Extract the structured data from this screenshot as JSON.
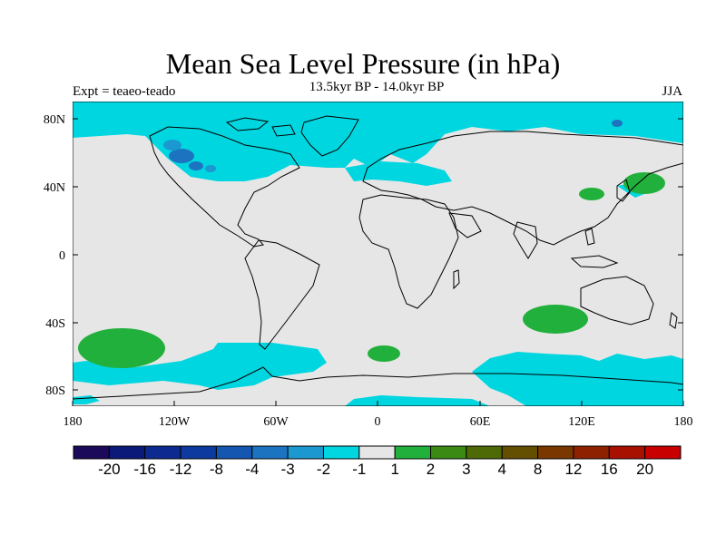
{
  "map": {
    "title": "Mean Sea Level Pressure (in hPa)",
    "left_label": "Expt = teaeo-teado",
    "center_label": "13.5kyr BP - 14.0kyr BP",
    "right_label": "JJA",
    "lat_labels": [
      "80N",
      "40N",
      "0",
      "40S",
      "80S"
    ],
    "lon_labels": [
      "180",
      "120W",
      "60W",
      "0",
      "60E",
      "120E",
      "180"
    ]
  },
  "colorbar": {
    "colors": [
      "#1b0a5a",
      "#0b1a78",
      "#0d2a90",
      "#0d3a9e",
      "#1556b0",
      "#1c74c0",
      "#1c98d0",
      "#00d6e0",
      "#e6e6e6",
      "#22b03c",
      "#3a8a14",
      "#4e6a06",
      "#644e00",
      "#7a3800",
      "#8e2200",
      "#a81000",
      "#c80000"
    ],
    "labels": [
      "-20",
      "-16",
      "-12",
      "-8",
      "-4",
      "-3",
      "-2",
      "-1",
      "1",
      "2",
      "3",
      "4",
      "8",
      "12",
      "16",
      "20"
    ]
  },
  "legend_colors": {
    "cyan": "#00d6e0",
    "green": "#22b03c",
    "blue": "#1c74c0",
    "land_bg": "#e6e6e6"
  }
}
